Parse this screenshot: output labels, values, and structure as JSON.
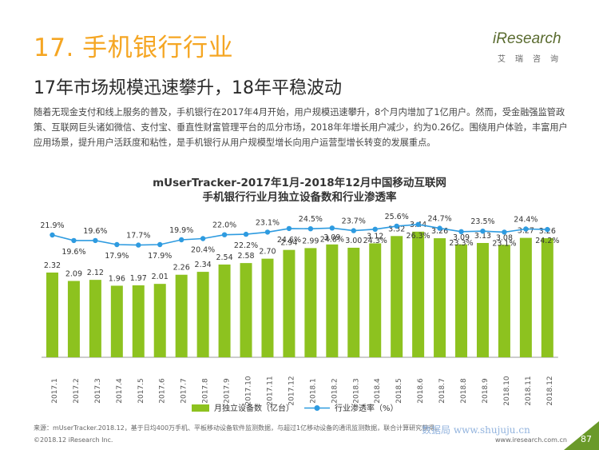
{
  "page": {
    "title": "17. 手机银行行业",
    "subtitle": "17年市场规模迅速攀升，18年平稳波动",
    "description": "随着无现金支付和线上服务的普及，手机银行在2017年4月开始，用户规模迅速攀升，8个月内增加了1亿用户。然而，受金融强监管政策、互联网巨头诸如微信、支付宝、垂直性财富管理平台的瓜分市场，2018年年增长用户减少，约为0.26亿。围绕用户体验，丰富用户应用场景，提升用户活跃度和粘性，是手机银行从用户规模型增长向用户运营型增长转变的发展重点。",
    "logo_text": "iResearch",
    "logo_sub": "艾瑞咨询",
    "source": "来源：mUserTracker.2018.12，基于日均400万手机、平板移动设备软件监测数据，与超过1亿移动设备的通讯监测数据，联合计算研究获得。",
    "copyright": "©2018.12 iResearch Inc.",
    "url": "www.iresearch.com.cn",
    "page_number": "87",
    "watermark": "数据局 www.shujuju.cn"
  },
  "chart_data": {
    "type": "bar",
    "title": "mUserTracker-2017年1月-2018年12月中国移动互联网",
    "subtitle": "手机银行行业月独立设备数和行业渗透率",
    "categories": [
      "2017.1",
      "2017.2",
      "2017.3",
      "2017.4",
      "2017.5",
      "2017.6",
      "2017.7",
      "2017.8",
      "2017.9",
      "2017.10",
      "2017.11",
      "2017.12",
      "2018.1",
      "2018.2",
      "2018.3",
      "2018.4",
      "2018.5",
      "2018.6",
      "2018.7",
      "2018.8",
      "2018.9",
      "2018.10",
      "2018.11",
      "2018.12"
    ],
    "series": [
      {
        "name": "月独立设备数（亿台）",
        "type": "bar",
        "color": "#8DC21F",
        "values": [
          2.32,
          2.09,
          2.12,
          1.96,
          1.97,
          2.01,
          2.26,
          2.34,
          2.54,
          2.58,
          2.7,
          2.94,
          2.99,
          3.09,
          3.0,
          3.12,
          3.32,
          3.44,
          3.26,
          3.09,
          3.13,
          3.08,
          3.27,
          3.26
        ],
        "labels": [
          "2.32",
          "2.09",
          "2.12",
          "1.96",
          "1.97",
          "2.01",
          "2.26",
          "2.34",
          "2.54",
          "2.58",
          "2.70",
          "2.94",
          "2.99",
          "3.09",
          "3.00",
          "3.12",
          "3.32",
          "3.44",
          "3.26",
          "3.09",
          "3.13",
          "3.08",
          "3.27",
          "3.26"
        ]
      },
      {
        "name": "行业渗透率（%）",
        "type": "line",
        "color": "#2E9BE0",
        "values": [
          21.9,
          19.6,
          19.6,
          17.9,
          17.7,
          17.9,
          19.9,
          20.4,
          22.0,
          22.2,
          23.1,
          24.6,
          24.5,
          24.8,
          23.7,
          24.3,
          25.6,
          26.3,
          24.7,
          23.3,
          23.5,
          23.1,
          24.4,
          24.2
        ],
        "labels": [
          "21.9%",
          "19.6%",
          "19.6%",
          "17.9%",
          "17.7%",
          "17.9%",
          "19.9%",
          "20.4%",
          "22.0%",
          "22.2%",
          "23.1%",
          "24.6%",
          "24.5%",
          "24.8%",
          "23.7%",
          "24.3%",
          "25.6%",
          "26.3%",
          "24.7%",
          "23.3%",
          "23.5%",
          "23.1%",
          "24.4%",
          "24.2%"
        ],
        "label_side": [
          "above",
          "below",
          "above",
          "below",
          "above",
          "below",
          "above",
          "below",
          "above",
          "below",
          "above",
          "below",
          "above",
          "below",
          "above",
          "below",
          "above",
          "below",
          "above",
          "below",
          "above",
          "below",
          "above",
          "below"
        ]
      }
    ],
    "grid": false,
    "legend": "bottom"
  }
}
